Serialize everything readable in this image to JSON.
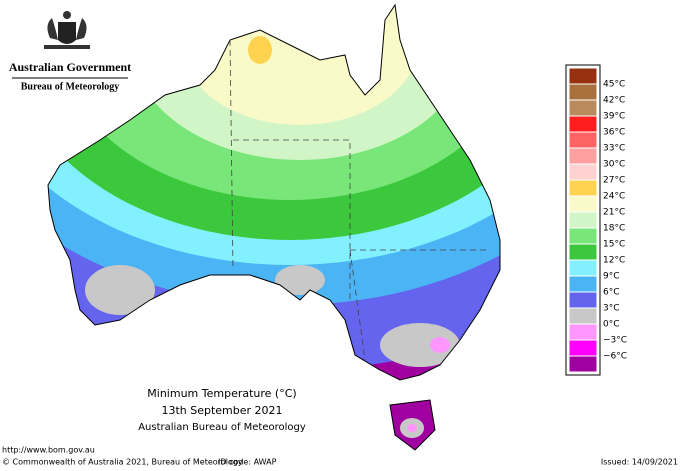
{
  "header": {
    "government": "Australian Government",
    "bureau": "Bureau of Meteorology"
  },
  "map": {
    "title": "Minimum Temperature (°C)",
    "date": "13th September 2021",
    "source": "Australian Bureau of Meteorology"
  },
  "legend": {
    "labels": [
      "45°C",
      "42°C",
      "39°C",
      "36°C",
      "33°C",
      "30°C",
      "27°C",
      "24°C",
      "21°C",
      "18°C",
      "15°C",
      "12°C",
      "9°C",
      "6°C",
      "3°C",
      "0°C",
      "−3°C",
      "−6°C"
    ],
    "colors": [
      "#96300f",
      "#a8703c",
      "#b88a5c",
      "#ff1e1e",
      "#ff6464",
      "#ffa0a0",
      "#ffd2d2",
      "#ffd250",
      "#fafac8",
      "#d2f5c8",
      "#78e678",
      "#3cc83c",
      "#82f0ff",
      "#4ab4f5",
      "#6464ee",
      "#c8c8c8",
      "#ff96ff",
      "#ff00ff",
      "#a000a0"
    ]
  },
  "footer": {
    "url": "http://www.bom.gov.au",
    "copyright": "© Commonwealth of Australia 2021, Bureau of Meteorology",
    "id": "ID code: AWAP",
    "issued": "Issued: 14/09/2021"
  }
}
